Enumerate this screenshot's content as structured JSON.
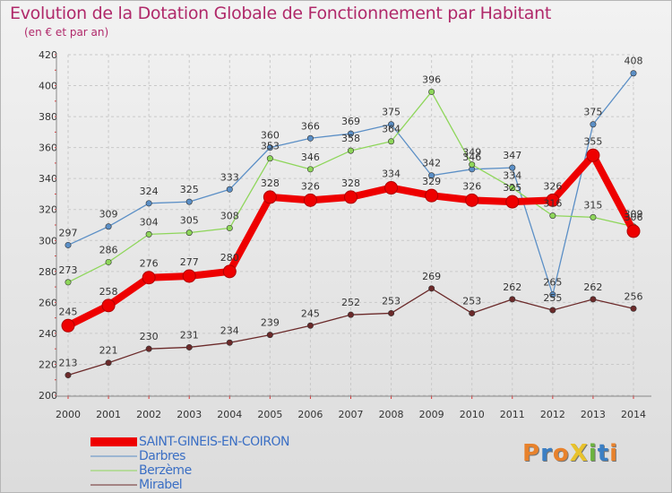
{
  "title": "Evolution de la Dotation Globale de Fonctionnement par Habitant",
  "subtitle": "(en € et par an)",
  "logo_text": "ProXiti",
  "logo_colors": [
    "#e8822c",
    "#3b7fc4",
    "#e8822c",
    "#e8c22c",
    "#6cb33f",
    "#3b7fc4",
    "#e8822c"
  ],
  "chart_data": {
    "type": "line",
    "x": [
      "2000",
      "2001",
      "2002",
      "2003",
      "2004",
      "2005",
      "2006",
      "2007",
      "2008",
      "2009",
      "2010",
      "2011",
      "2012",
      "2013",
      "2014"
    ],
    "ylim": [
      200,
      420
    ],
    "yticks": [
      200,
      220,
      240,
      260,
      280,
      300,
      320,
      340,
      360,
      380,
      400,
      420
    ],
    "grid": true,
    "legend_position": "bottom-left",
    "series": [
      {
        "name": "Darbres",
        "color": "#5b8fc6",
        "values": [
          297,
          309,
          324,
          325,
          333,
          360,
          366,
          369,
          375,
          342,
          346,
          347,
          265,
          375,
          408
        ]
      },
      {
        "name": "Berzème",
        "color": "#8ed65a",
        "values": [
          273,
          286,
          304,
          305,
          308,
          353,
          346,
          358,
          364,
          396,
          349,
          334,
          316,
          315,
          309
        ]
      },
      {
        "name": "Mirabel",
        "color": "#6b2a2a",
        "values": [
          213,
          221,
          230,
          231,
          234,
          239,
          245,
          252,
          253,
          269,
          253,
          262,
          255,
          262,
          256
        ]
      },
      {
        "name": "SAINT-GINEIS-EN-COIRON",
        "color": "#ee0000",
        "values": [
          245,
          258,
          276,
          277,
          280,
          328,
          326,
          328,
          334,
          329,
          326,
          325,
          326,
          355,
          306
        ]
      }
    ]
  }
}
